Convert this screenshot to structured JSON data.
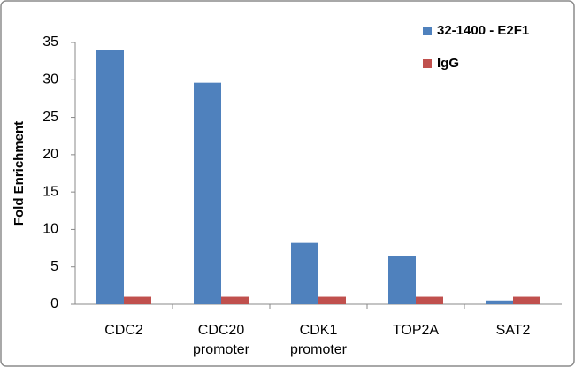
{
  "chart_data": {
    "type": "bar",
    "y_label": "Fold Enrichment",
    "categories": [
      "CDC2",
      "CDC20 promoter",
      "CDK1 promoter",
      "TOP2A",
      "SAT2"
    ],
    "series": [
      {
        "name": "32-1400 - E2F1",
        "color": "#4f81bd",
        "values": [
          34,
          29.6,
          8.2,
          6.5,
          0.5
        ]
      },
      {
        "name": "IgG",
        "color": "#c0504d",
        "values": [
          1,
          1,
          1,
          1,
          1
        ]
      }
    ],
    "ylim": [
      0,
      35
    ],
    "yticks": [
      0,
      5,
      10,
      15,
      20,
      25,
      30,
      35
    ],
    "legend": "top-right"
  }
}
